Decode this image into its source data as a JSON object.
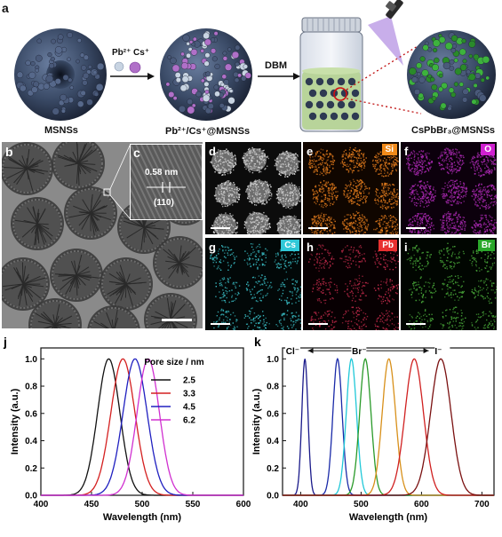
{
  "panel_a": {
    "label": "a",
    "names": [
      "MSNSs",
      "Pb²⁺/Cs⁺@MSNSs",
      "CsPbBr₃@MSNSs"
    ],
    "ions": [
      "Pb²⁺",
      "Cs⁺"
    ],
    "process": "DBM",
    "colors": {
      "sphere": "#3a4a66",
      "pb": "#c8d4e2",
      "cs": "#b070c8",
      "perov": "#3db33d",
      "solution": "#b8d49a",
      "uv": "#9a6bd8"
    }
  },
  "tem": {
    "b_label": "b",
    "c_label": "c",
    "d_spacing": "0.58 nm",
    "plane": "(110)"
  },
  "maps": [
    {
      "label": "d",
      "element": "",
      "tag_color": "",
      "dot_color": "#e8e8e8",
      "bg": "#0c0c0c"
    },
    {
      "label": "e",
      "element": "Si",
      "tag_color": "#f08a1a",
      "dot_color": "#e07a1c",
      "bg": "#100600"
    },
    {
      "label": "f",
      "element": "O",
      "tag_color": "#d020d0",
      "dot_color": "#b02ab8",
      "bg": "#0c000c"
    },
    {
      "label": "g",
      "element": "Cs",
      "tag_color": "#30c8d8",
      "dot_color": "#3ac0c8",
      "bg": "#020808"
    },
    {
      "label": "h",
      "element": "Pb",
      "tag_color": "#e83030",
      "dot_color": "#c02a4a",
      "bg": "#080002"
    },
    {
      "label": "i",
      "element": "Br",
      "tag_color": "#2aa82a",
      "dot_color": "#4aaa3a",
      "bg": "#010601"
    }
  ],
  "chart_data": [
    {
      "panel": "j",
      "type": "line",
      "xlabel": "Wavelength (nm)",
      "ylabel": "Intensity (a.u.)",
      "xlim": [
        400,
        600
      ],
      "ylim": [
        0,
        1.08
      ],
      "xticks": [
        400,
        450,
        500,
        550,
        600
      ],
      "yticks": [
        0.0,
        0.2,
        0.4,
        0.6,
        0.8,
        1.0
      ],
      "legend_title": "Pore size / nm",
      "legend_position": "top-right",
      "series": [
        {
          "name": "2.5",
          "peak": 467,
          "fwhm": 26,
          "color": "#111111"
        },
        {
          "name": "3.3",
          "peak": 481,
          "fwhm": 28,
          "color": "#d42020"
        },
        {
          "name": "4.5",
          "peak": 493,
          "fwhm": 28,
          "color": "#2020c0"
        },
        {
          "name": "6.2",
          "peak": 506,
          "fwhm": 26,
          "color": "#d030d0"
        }
      ]
    },
    {
      "panel": "k",
      "type": "line",
      "xlabel": "Wavelength (nm)",
      "ylabel": "Intensity (a.u.)",
      "xlim": [
        370,
        720
      ],
      "ylim": [
        0,
        1.08
      ],
      "xticks": [
        400,
        500,
        600,
        700
      ],
      "yticks": [
        0.0,
        0.2,
        0.4,
        0.6,
        0.8,
        1.0
      ],
      "annotations": [
        "Cl⁻",
        "Br⁻",
        "I⁻"
      ],
      "series": [
        {
          "peak": 407,
          "fwhm": 12,
          "color": "#1a1a8a"
        },
        {
          "peak": 461,
          "fwhm": 18,
          "color": "#1a2aa8"
        },
        {
          "peak": 484,
          "fwhm": 20,
          "color": "#20c8d8"
        },
        {
          "peak": 507,
          "fwhm": 22,
          "color": "#2a9a2a"
        },
        {
          "peak": 546,
          "fwhm": 26,
          "color": "#d8901a"
        },
        {
          "peak": 588,
          "fwhm": 36,
          "color": "#d02020"
        },
        {
          "peak": 632,
          "fwhm": 40,
          "color": "#7a1010"
        }
      ]
    }
  ]
}
